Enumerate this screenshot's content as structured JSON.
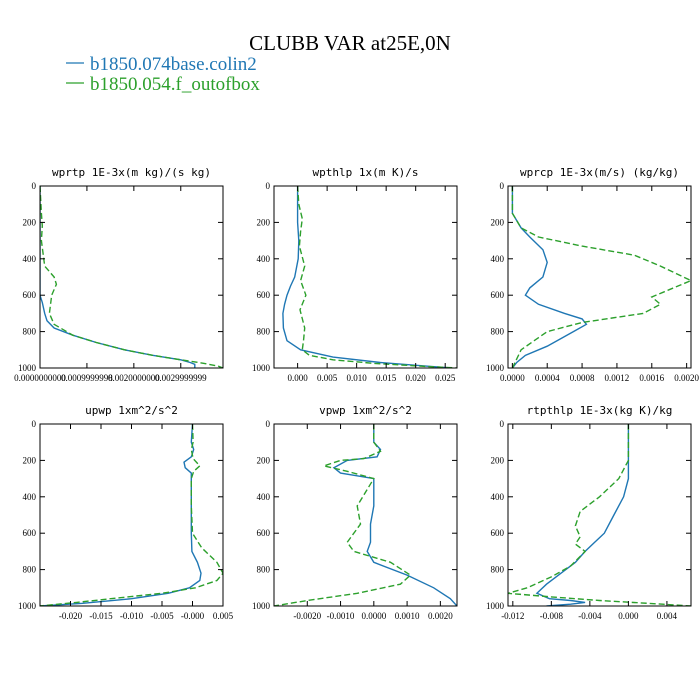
{
  "figure": {
    "title": "CLUBB VAR at25E,0N",
    "legend": [
      {
        "label": "b1850.074base.colin2",
        "color": "#1f77b4"
      },
      {
        "label": "b1850.054.f_outofbox",
        "color": "#2ca02c"
      }
    ]
  },
  "chart_data": [
    {
      "type": "line",
      "title": "wprtp  1E-3x(m kg)/(s kg)",
      "xlim": [
        0,
        0.0039
      ],
      "ylim": [
        1000,
        0
      ],
      "xticks": [
        0,
        0.001,
        0.002,
        0.003
      ],
      "xtick_labels": [
        "0.0000000000",
        "0.0009999998",
        "0.0020000000",
        "0.0029999999"
      ],
      "yticks": [
        0,
        200,
        400,
        600,
        800,
        1000
      ],
      "series": [
        {
          "name": "b1850.074base.colin2",
          "color": "#1f77b4",
          "dash": "",
          "x": [
            0,
            0,
            0,
            0,
            0,
            0,
            0,
            5e-05,
            0.0001,
            0.00015,
            0.0003,
            0.0007,
            0.0012,
            0.0018,
            0.0024,
            0.003,
            0.0032,
            0.0033,
            0.0033,
            0.0033
          ],
          "y": [
            0,
            150,
            300,
            400,
            500,
            560,
            600,
            640,
            700,
            740,
            780,
            820,
            860,
            900,
            930,
            955,
            970,
            980,
            992,
            1000
          ]
        },
        {
          "name": "b1850.054.f_outofbox",
          "color": "#2ca02c",
          "dash": "6,3",
          "x": [
            0,
            3e-05,
            5e-05,
            3e-05,
            0.0001,
            0.0003,
            0.00035,
            0.00025,
            0.0002,
            0.0003,
            0.0007,
            0.0012,
            0.0018,
            0.0024,
            0.003,
            0.0035,
            0.0038,
            0.0039
          ],
          "y": [
            0,
            150,
            220,
            300,
            440,
            500,
            540,
            600,
            700,
            760,
            820,
            860,
            900,
            930,
            955,
            975,
            990,
            1000
          ]
        }
      ]
    },
    {
      "type": "line",
      "title": "wpthlp  1x(m K)/s",
      "xlim": [
        -0.004,
        0.027
      ],
      "ylim": [
        1000,
        0
      ],
      "xticks": [
        0,
        0.005,
        0.01,
        0.015,
        0.02,
        0.025
      ],
      "xtick_labels": [
        "0.000",
        "0.005",
        "0.010",
        "0.015",
        "0.020",
        "0.025"
      ],
      "yticks": [
        0,
        200,
        400,
        600,
        800,
        1000
      ],
      "series": [
        {
          "name": "b1850.074base.colin2",
          "color": "#1f77b4",
          "dash": "",
          "x": [
            0,
            0,
            0,
            0.0002,
            0.0001,
            -0.0005,
            -0.0012,
            -0.0018,
            -0.0022,
            -0.0025,
            -0.0024,
            -0.0018,
            0.0005,
            0.006,
            0.014,
            0.022,
            0.026
          ],
          "y": [
            0,
            100,
            200,
            300,
            400,
            500,
            550,
            600,
            650,
            700,
            780,
            850,
            900,
            940,
            970,
            990,
            1000
          ]
        },
        {
          "name": "b1850.054.f_outofbox",
          "color": "#2ca02c",
          "dash": "6,3",
          "x": [
            0,
            0.0002,
            0.0008,
            0.0005,
            0.0003,
            0.0012,
            0.0005,
            0.0014,
            0.0004,
            0.0012,
            0.001,
            0.0008,
            0.002,
            0.006,
            0.013,
            0.021,
            0.027
          ],
          "y": [
            0,
            100,
            180,
            250,
            330,
            440,
            520,
            600,
            680,
            780,
            850,
            900,
            930,
            955,
            975,
            990,
            1000
          ]
        }
      ]
    },
    {
      "type": "line",
      "title": "wprcp  1E-3x(m/s) (kg/kg)",
      "xlim": [
        -5e-05,
        0.00205
      ],
      "ylim": [
        1000,
        0
      ],
      "xticks": [
        0,
        0.0004,
        0.0008,
        0.0012,
        0.0016,
        0.002
      ],
      "xtick_labels": [
        "0.0000",
        "0.0004",
        "0.0008",
        "0.0012",
        "0.0016",
        "0.0020"
      ],
      "yticks": [
        0,
        200,
        400,
        600,
        800,
        1000
      ],
      "series": [
        {
          "name": "b1850.074base.colin2",
          "color": "#1f77b4",
          "dash": "",
          "x": [
            0,
            0,
            0.0001,
            0.0002,
            0.00035,
            0.0004,
            0.00035,
            0.0002,
            0.00015,
            0.0003,
            0.0006,
            0.0008,
            0.00085,
            0.0007,
            0.0004,
            0.00015,
            5e-05,
            0
          ],
          "y": [
            0,
            150,
            230,
            280,
            350,
            420,
            500,
            560,
            600,
            650,
            700,
            730,
            760,
            800,
            880,
            930,
            970,
            1000
          ]
        },
        {
          "name": "b1850.054.f_outofbox",
          "color": "#2ca02c",
          "dash": "6,3",
          "x": [
            0,
            0,
            0.0001,
            0.0003,
            0.0008,
            0.0014,
            0.0017,
            0.00205,
            0.0018,
            0.0016,
            0.0017,
            0.0015,
            0.0008,
            0.0004,
            0.0001,
            0
          ],
          "y": [
            0,
            150,
            230,
            280,
            330,
            380,
            440,
            520,
            570,
            610,
            650,
            700,
            750,
            800,
            900,
            1000
          ]
        }
      ]
    },
    {
      "type": "line",
      "title": "upwp  1xm^2/s^2",
      "xlim": [
        -0.025,
        0.005
      ],
      "ylim": [
        1000,
        0
      ],
      "xticks": [
        -0.02,
        -0.015,
        -0.01,
        -0.005,
        0,
        0.005
      ],
      "xtick_labels": [
        "-0.020",
        "-0.015",
        "-0.010",
        "-0.005",
        "-0.000",
        "0.005"
      ],
      "yticks": [
        0,
        200,
        400,
        600,
        800,
        1000
      ],
      "series": [
        {
          "name": "b1850.074base.colin2",
          "color": "#1f77b4",
          "dash": "",
          "x": [
            0,
            -0.0002,
            0.0002,
            -0.0002,
            -0.0014,
            -0.0012,
            -0.0002,
            -0.0002,
            -0.0002,
            -0.0001,
            0.0008,
            0.0014,
            0.0012,
            -0.0005,
            -0.004,
            -0.01,
            -0.018,
            -0.025
          ],
          "y": [
            0,
            100,
            140,
            180,
            210,
            240,
            270,
            400,
            600,
            700,
            760,
            820,
            860,
            900,
            930,
            960,
            985,
            1000
          ]
        },
        {
          "name": "b1850.054.f_outofbox",
          "color": "#2ca02c",
          "dash": "6,3",
          "x": [
            0,
            0.0001,
            -0.0002,
            0.0001,
            0.0012,
            0.0002,
            -0.0002,
            -0.0002,
            0.0,
            0.0015,
            0.004,
            0.005,
            0.004,
            0.0005,
            -0.005,
            -0.012,
            -0.019,
            -0.025
          ],
          "y": [
            0,
            100,
            140,
            190,
            230,
            260,
            300,
            450,
            600,
            680,
            760,
            820,
            860,
            900,
            930,
            955,
            980,
            1000
          ]
        }
      ]
    },
    {
      "type": "line",
      "title": "vpwp  1xm^2/s^2",
      "xlim": [
        -0.003,
        0.0025
      ],
      "ylim": [
        1000,
        0
      ],
      "xticks": [
        -0.002,
        -0.001,
        0,
        0.001,
        0.002
      ],
      "xtick_labels": [
        "-0.0020",
        "-0.0010",
        "0.0000",
        "0.0010",
        "0.0020"
      ],
      "yticks": [
        0,
        200,
        400,
        600,
        800,
        1000
      ],
      "series": [
        {
          "name": "b1850.074base.colin2",
          "color": "#1f77b4",
          "dash": "",
          "x": [
            0,
            0,
            0.0002,
            0.0001,
            -0.0008,
            -0.0012,
            -0.001,
            0.0,
            0.0,
            -0.0001,
            -0.0001,
            -0.0002,
            0.0,
            0.001,
            0.0018,
            0.0023,
            0.0025
          ],
          "y": [
            0,
            100,
            140,
            180,
            200,
            240,
            270,
            300,
            450,
            550,
            650,
            700,
            760,
            830,
            900,
            960,
            1000
          ]
        },
        {
          "name": "b1850.054.f_outofbox",
          "color": "#2ca02c",
          "dash": "6,3",
          "x": [
            0,
            0,
            0.0002,
            -0.0003,
            -0.001,
            -0.0015,
            -0.0008,
            0.0,
            -0.0005,
            -0.0004,
            -0.0008,
            -0.0006,
            0.0005,
            0.0011,
            0.0008,
            -0.0005,
            -0.002,
            -0.003
          ],
          "y": [
            0,
            100,
            150,
            190,
            200,
            230,
            260,
            300,
            450,
            550,
            650,
            700,
            760,
            830,
            880,
            930,
            970,
            1000
          ]
        }
      ]
    },
    {
      "type": "line",
      "title": "rtpthlp  1E-3x(kg K)/kg",
      "xlim": [
        -0.0125,
        0.0065
      ],
      "ylim": [
        1000,
        0
      ],
      "xticks": [
        -0.012,
        -0.008,
        -0.004,
        0,
        0.004
      ],
      "xtick_labels": [
        "-0.012",
        "-0.008",
        "-0.004",
        "0.000",
        "0.004"
      ],
      "yticks": [
        0,
        200,
        400,
        600,
        800,
        1000
      ],
      "series": [
        {
          "name": "b1850.074base.colin2",
          "color": "#1f77b4",
          "dash": "",
          "x": [
            0,
            0,
            0,
            -0.0005,
            -0.0015,
            -0.0025,
            -0.0035,
            -0.0045,
            -0.0055,
            -0.007,
            -0.0085,
            -0.0095,
            -0.0082,
            -0.006,
            -0.0045,
            -0.006,
            -0.0085
          ],
          "y": [
            0,
            150,
            300,
            400,
            500,
            600,
            650,
            700,
            760,
            820,
            880,
            930,
            960,
            970,
            980,
            990,
            1000
          ]
        },
        {
          "name": "b1850.054.f_outofbox",
          "color": "#2ca02c",
          "dash": "6,3",
          "x": [
            0,
            0,
            -0.001,
            -0.003,
            -0.005,
            -0.0055,
            -0.005,
            -0.0055,
            -0.0045,
            -0.006,
            -0.008,
            -0.0105,
            -0.0125,
            -0.008,
            -0.003,
            0.002,
            0.0065
          ],
          "y": [
            0,
            200,
            300,
            400,
            480,
            560,
            620,
            660,
            700,
            780,
            840,
            900,
            930,
            950,
            970,
            985,
            1000
          ]
        }
      ]
    }
  ]
}
